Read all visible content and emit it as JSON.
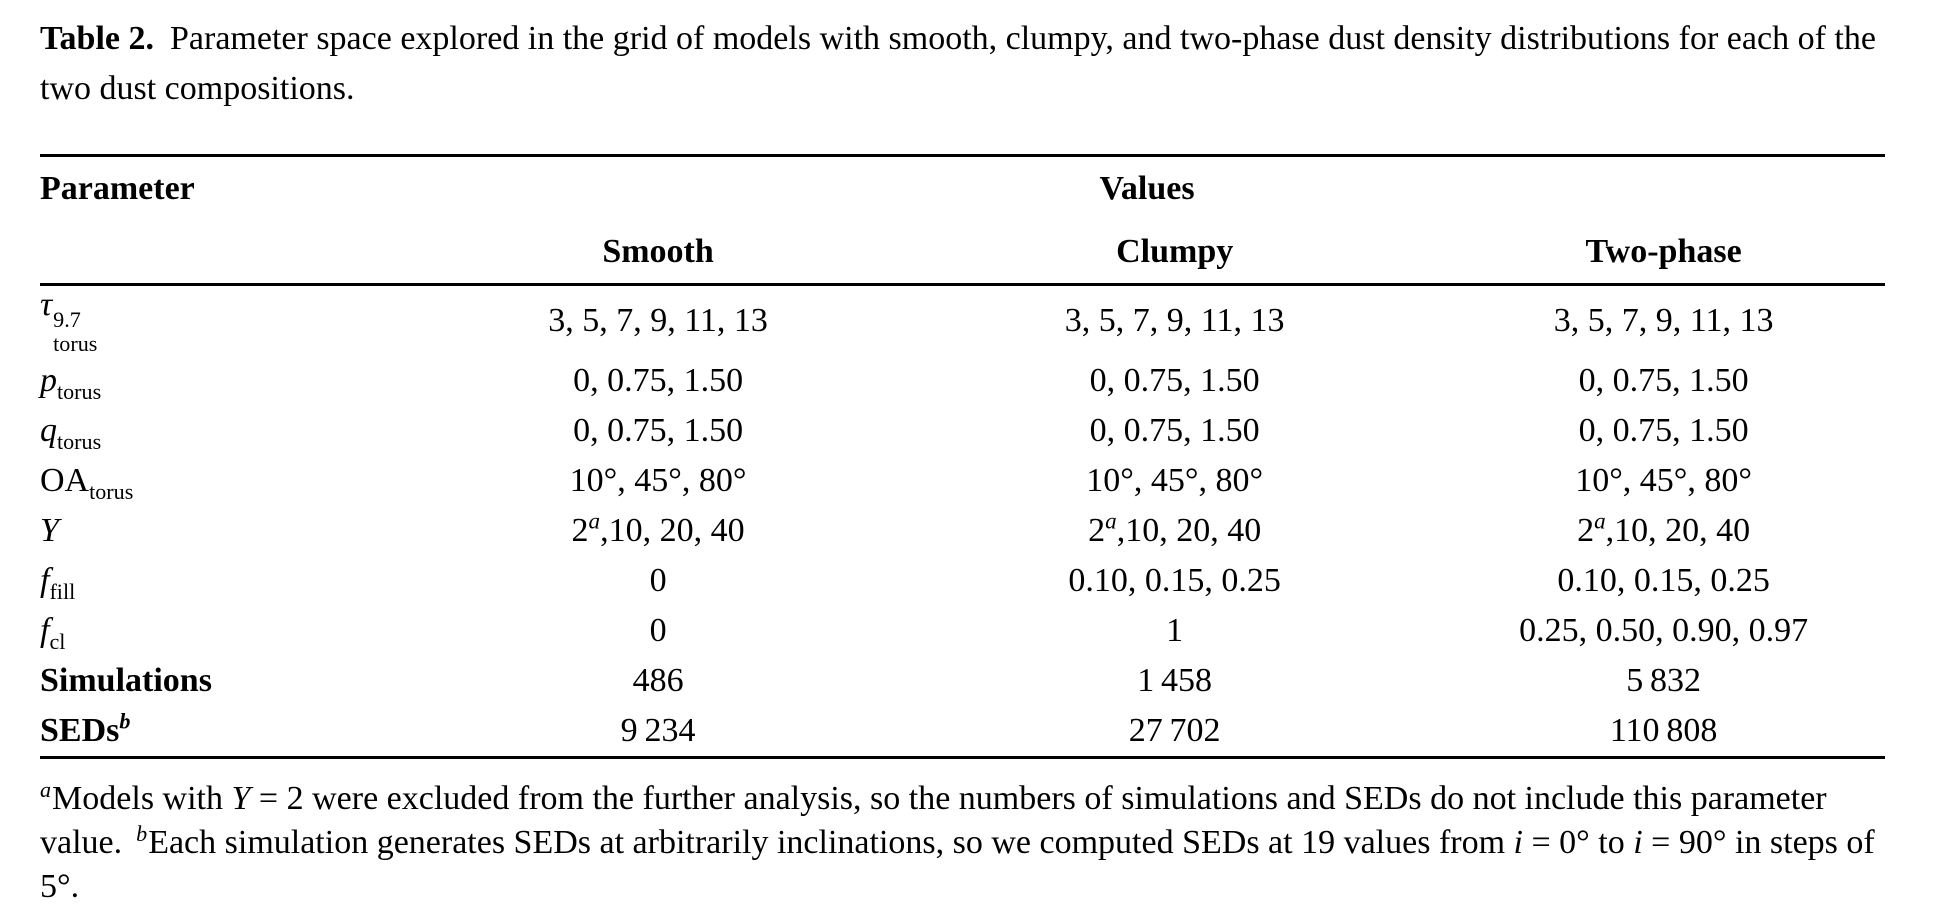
{
  "caption": {
    "label": "Table 2.",
    "text": "Parameter space explored in the grid of models with smooth, clumpy, and two-phase dust density distributions for each of the two dust compositions."
  },
  "table": {
    "header": {
      "parameter": "Parameter",
      "values": "Values",
      "smooth": "Smooth",
      "clumpy": "Clumpy",
      "twophase": "Two-phase"
    },
    "rows": [
      {
        "sym": "τ",
        "sup": "9.7",
        "sub": "torus",
        "smooth": "3, 5, 7, 9, 11, 13",
        "clumpy": "3, 5, 7, 9, 11, 13",
        "twophase": "3, 5, 7, 9, 11, 13"
      },
      {
        "sym": "p",
        "sub": "torus",
        "smooth": "0, 0.75, 1.50",
        "clumpy": "0, 0.75, 1.50",
        "twophase": "0, 0.75, 1.50"
      },
      {
        "sym": "q",
        "sub": "torus",
        "smooth": "0, 0.75, 1.50",
        "clumpy": "0, 0.75, 1.50",
        "twophase": "0, 0.75, 1.50"
      },
      {
        "sym": "OA",
        "sub": "torus",
        "smooth": "10°, 45°, 80°",
        "clumpy": "10°, 45°, 80°",
        "twophase": "10°, 45°, 80°"
      },
      {
        "sym": "Y",
        "smooth": "2^{a},10, 20, 40",
        "clumpy": "2^{a},10, 20, 40",
        "twophase": "2^{a},10, 20, 40"
      },
      {
        "sym": "f",
        "sub": "fill",
        "smooth": "0",
        "clumpy": "0.10, 0.15, 0.25",
        "twophase": "0.10, 0.15, 0.25"
      },
      {
        "sym": "f",
        "sub": "cl",
        "smooth": "0",
        "clumpy": "1",
        "twophase": "0.25, 0.50, 0.90, 0.97"
      },
      {
        "sym": "Simulations",
        "smooth": "486",
        "clumpy": "1 458",
        "twophase": "5 832"
      },
      {
        "sym": "SEDs",
        "sup_marker": "b",
        "smooth": "9 234",
        "clumpy": "27 702",
        "twophase": "110 808"
      }
    ]
  },
  "footnote": {
    "a_marker": "a",
    "a_text": "Models with *Y* = 2 were excluded from the further analysis, so the numbers of simulations and SEDs do not include this parameter value.",
    "b_marker": "b",
    "b_text": "Each simulation generates SEDs at arbitrarily inclinations, so we computed SEDs at 19 values from *i* = 0° to *i* = 90° in steps of 5°."
  }
}
